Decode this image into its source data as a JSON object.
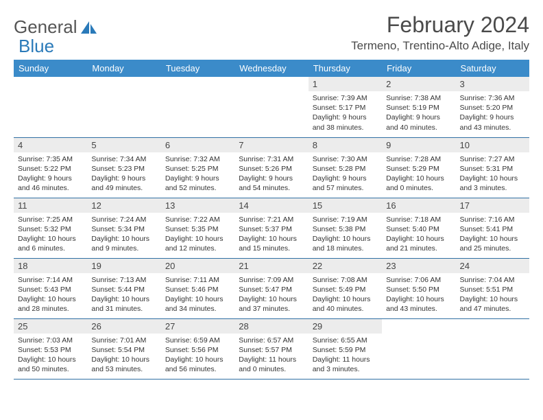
{
  "logo": {
    "text1": "General",
    "text2": "Blue"
  },
  "header": {
    "month_title": "February 2024",
    "location": "Termeno, Trentino-Alto Adige, Italy"
  },
  "colors": {
    "header_bg": "#3b8bc9",
    "header_text": "#ffffff",
    "daynum_bg": "#ececec",
    "border": "#2f6fa3",
    "logo_blue": "#2a7ab9"
  },
  "weekdays": [
    "Sunday",
    "Monday",
    "Tuesday",
    "Wednesday",
    "Thursday",
    "Friday",
    "Saturday"
  ],
  "weeks": [
    [
      null,
      null,
      null,
      null,
      {
        "n": "1",
        "sr": "7:39 AM",
        "ss": "5:17 PM",
        "dl": "9 hours and 38 minutes."
      },
      {
        "n": "2",
        "sr": "7:38 AM",
        "ss": "5:19 PM",
        "dl": "9 hours and 40 minutes."
      },
      {
        "n": "3",
        "sr": "7:36 AM",
        "ss": "5:20 PM",
        "dl": "9 hours and 43 minutes."
      }
    ],
    [
      {
        "n": "4",
        "sr": "7:35 AM",
        "ss": "5:22 PM",
        "dl": "9 hours and 46 minutes."
      },
      {
        "n": "5",
        "sr": "7:34 AM",
        "ss": "5:23 PM",
        "dl": "9 hours and 49 minutes."
      },
      {
        "n": "6",
        "sr": "7:32 AM",
        "ss": "5:25 PM",
        "dl": "9 hours and 52 minutes."
      },
      {
        "n": "7",
        "sr": "7:31 AM",
        "ss": "5:26 PM",
        "dl": "9 hours and 54 minutes."
      },
      {
        "n": "8",
        "sr": "7:30 AM",
        "ss": "5:28 PM",
        "dl": "9 hours and 57 minutes."
      },
      {
        "n": "9",
        "sr": "7:28 AM",
        "ss": "5:29 PM",
        "dl": "10 hours and 0 minutes."
      },
      {
        "n": "10",
        "sr": "7:27 AM",
        "ss": "5:31 PM",
        "dl": "10 hours and 3 minutes."
      }
    ],
    [
      {
        "n": "11",
        "sr": "7:25 AM",
        "ss": "5:32 PM",
        "dl": "10 hours and 6 minutes."
      },
      {
        "n": "12",
        "sr": "7:24 AM",
        "ss": "5:34 PM",
        "dl": "10 hours and 9 minutes."
      },
      {
        "n": "13",
        "sr": "7:22 AM",
        "ss": "5:35 PM",
        "dl": "10 hours and 12 minutes."
      },
      {
        "n": "14",
        "sr": "7:21 AM",
        "ss": "5:37 PM",
        "dl": "10 hours and 15 minutes."
      },
      {
        "n": "15",
        "sr": "7:19 AM",
        "ss": "5:38 PM",
        "dl": "10 hours and 18 minutes."
      },
      {
        "n": "16",
        "sr": "7:18 AM",
        "ss": "5:40 PM",
        "dl": "10 hours and 21 minutes."
      },
      {
        "n": "17",
        "sr": "7:16 AM",
        "ss": "5:41 PM",
        "dl": "10 hours and 25 minutes."
      }
    ],
    [
      {
        "n": "18",
        "sr": "7:14 AM",
        "ss": "5:43 PM",
        "dl": "10 hours and 28 minutes."
      },
      {
        "n": "19",
        "sr": "7:13 AM",
        "ss": "5:44 PM",
        "dl": "10 hours and 31 minutes."
      },
      {
        "n": "20",
        "sr": "7:11 AM",
        "ss": "5:46 PM",
        "dl": "10 hours and 34 minutes."
      },
      {
        "n": "21",
        "sr": "7:09 AM",
        "ss": "5:47 PM",
        "dl": "10 hours and 37 minutes."
      },
      {
        "n": "22",
        "sr": "7:08 AM",
        "ss": "5:49 PM",
        "dl": "10 hours and 40 minutes."
      },
      {
        "n": "23",
        "sr": "7:06 AM",
        "ss": "5:50 PM",
        "dl": "10 hours and 43 minutes."
      },
      {
        "n": "24",
        "sr": "7:04 AM",
        "ss": "5:51 PM",
        "dl": "10 hours and 47 minutes."
      }
    ],
    [
      {
        "n": "25",
        "sr": "7:03 AM",
        "ss": "5:53 PM",
        "dl": "10 hours and 50 minutes."
      },
      {
        "n": "26",
        "sr": "7:01 AM",
        "ss": "5:54 PM",
        "dl": "10 hours and 53 minutes."
      },
      {
        "n": "27",
        "sr": "6:59 AM",
        "ss": "5:56 PM",
        "dl": "10 hours and 56 minutes."
      },
      {
        "n": "28",
        "sr": "6:57 AM",
        "ss": "5:57 PM",
        "dl": "11 hours and 0 minutes."
      },
      {
        "n": "29",
        "sr": "6:55 AM",
        "ss": "5:59 PM",
        "dl": "11 hours and 3 minutes."
      },
      null,
      null
    ]
  ],
  "labels": {
    "sunrise": "Sunrise:",
    "sunset": "Sunset:",
    "daylight": "Daylight:"
  }
}
